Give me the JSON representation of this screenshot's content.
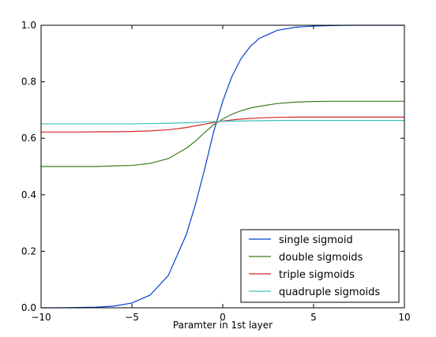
{
  "chart_data": {
    "type": "line",
    "title": "",
    "xlabel": "Paramter in 1st layer",
    "ylabel": "",
    "xlim": [
      -10,
      10
    ],
    "ylim": [
      0.0,
      1.0
    ],
    "x_ticks": [
      -10,
      -5,
      0,
      5,
      10
    ],
    "x_tick_labels": [
      "−10",
      "−5",
      "0",
      "5",
      "10"
    ],
    "y_ticks": [
      0.0,
      0.2,
      0.4,
      0.6,
      0.8,
      1.0
    ],
    "y_tick_labels": [
      "0.0",
      "0.2",
      "0.4",
      "0.6",
      "0.8",
      "1.0"
    ],
    "grid": false,
    "legend_position": "lower-right",
    "x": [
      -10,
      -9,
      -8,
      -7,
      -6,
      -5,
      -4,
      -3,
      -2,
      -1.5,
      -1,
      -0.5,
      0,
      0.5,
      1,
      1.5,
      2,
      3,
      4,
      5,
      6,
      7,
      8,
      9,
      10
    ],
    "series": [
      {
        "name": "single sigmoid",
        "color": "#0044cc",
        "values": [
          0.0,
          0.0,
          0.001,
          0.002,
          0.006,
          0.017,
          0.045,
          0.114,
          0.26,
          0.366,
          0.49,
          0.623,
          0.731,
          0.818,
          0.881,
          0.924,
          0.953,
          0.982,
          0.993,
          0.997,
          0.999,
          1.0,
          1.0,
          1.0,
          1.0
        ]
      },
      {
        "name": "double sigmoids",
        "color": "#3a7d1f",
        "values": [
          0.5,
          0.5,
          0.5,
          0.5,
          0.502,
          0.504,
          0.511,
          0.528,
          0.565,
          0.59,
          0.62,
          0.648,
          0.668,
          0.685,
          0.697,
          0.707,
          0.713,
          0.723,
          0.728,
          0.73,
          0.731,
          0.731,
          0.731,
          0.731,
          0.731
        ]
      },
      {
        "name": "triple sigmoids",
        "color": "#d62728",
        "values": [
          0.622,
          0.622,
          0.622,
          0.623,
          0.623,
          0.624,
          0.626,
          0.63,
          0.638,
          0.644,
          0.65,
          0.656,
          0.661,
          0.665,
          0.668,
          0.67,
          0.672,
          0.674,
          0.675,
          0.675,
          0.675,
          0.675,
          0.675,
          0.675,
          0.675
        ]
      },
      {
        "name": "quadruple sigmoids",
        "color": "#3cc0c0",
        "values": [
          0.651,
          0.651,
          0.651,
          0.651,
          0.651,
          0.651,
          0.652,
          0.653,
          0.655,
          0.656,
          0.658,
          0.659,
          0.66,
          0.661,
          0.661,
          0.662,
          0.662,
          0.663,
          0.663,
          0.663,
          0.663,
          0.663,
          0.663,
          0.663,
          0.663
        ]
      }
    ]
  }
}
